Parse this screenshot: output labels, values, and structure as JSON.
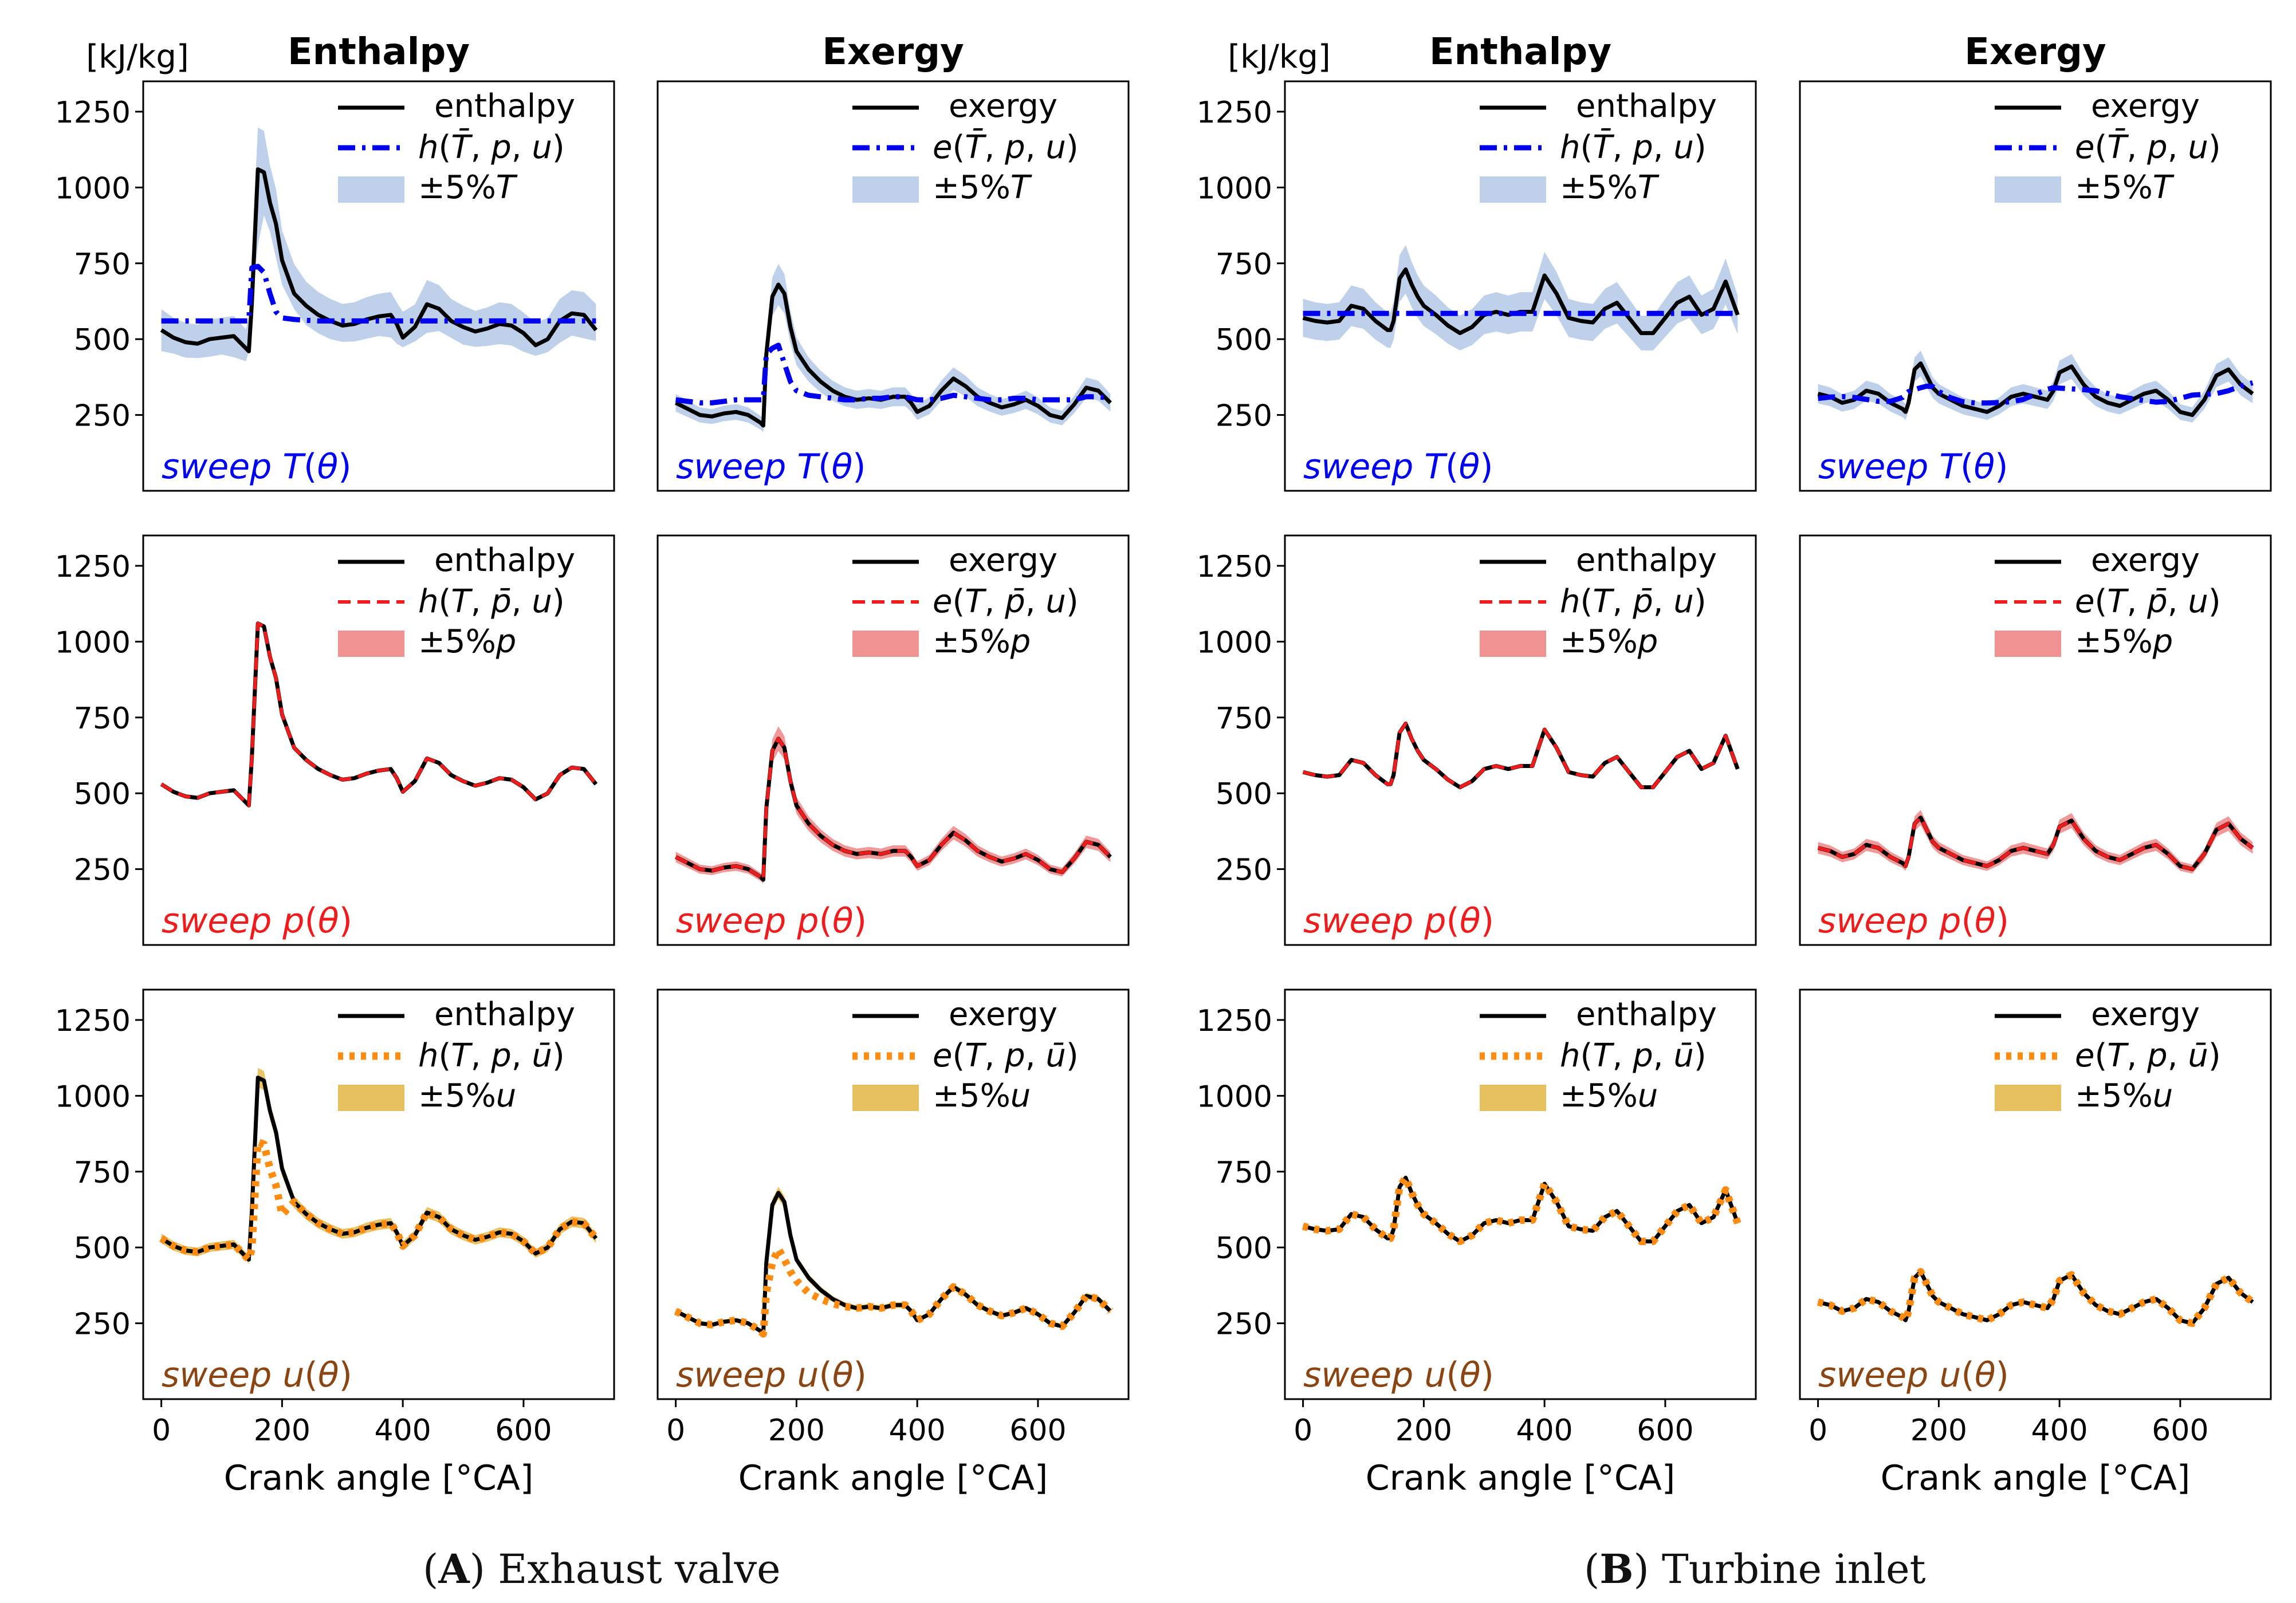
{
  "figure": {
    "panel_captions": [
      {
        "letter": "A",
        "text": " Exhaust valve"
      },
      {
        "letter": "B",
        "text": " Turbine inlet"
      }
    ]
  },
  "colors": {
    "T": "#0000ee",
    "T_band": "#b4c9e6",
    "p": "#ee1c1c",
    "p_band": "#ee7f7f",
    "u": "#ff8c10",
    "u_band": "#e3b542",
    "u_label": "#8b4513",
    "actual": "#000000"
  },
  "chart_data": {
    "type": "line",
    "column_titles": [
      "Enthalpy",
      "Exergy",
      "Enthalpy",
      "Exergy"
    ],
    "unit_label": "[kJ/kg]",
    "xlabel": "Crank angle [°CA]",
    "xlim": [
      -30,
      750
    ],
    "ylim": [
      0,
      1350
    ],
    "xticks": [
      0,
      200,
      400,
      600
    ],
    "yticks": [
      250,
      500,
      750,
      1000,
      1250
    ],
    "grid": false,
    "legend_position": "top-right",
    "rows": [
      {
        "sweep": "T",
        "label": "sweep T(θ)",
        "band_label": "±5%T",
        "h_ref": "h(T̄, p, u)",
        "e_ref": "e(T̄, p, u)",
        "ref_style": "dashdot"
      },
      {
        "sweep": "p",
        "label": "sweep p(θ)",
        "band_label": "±5%p",
        "h_ref": "h(T, p̄, u)",
        "e_ref": "e(T, p̄, u)",
        "ref_style": "dashed"
      },
      {
        "sweep": "u",
        "label": "sweep u(θ)",
        "band_label": "±5%u",
        "h_ref": "h(T, p, ū)",
        "e_ref": "e(T, p, ū)",
        "ref_style": "dotted"
      }
    ],
    "x": [
      0,
      20,
      40,
      60,
      80,
      100,
      120,
      140,
      145,
      150,
      160,
      170,
      180,
      190,
      200,
      220,
      240,
      260,
      280,
      300,
      320,
      340,
      360,
      380,
      390,
      400,
      420,
      440,
      460,
      480,
      500,
      520,
      540,
      560,
      580,
      600,
      620,
      640,
      660,
      680,
      700,
      720
    ],
    "series": {
      "A_enthalpy": [
        530,
        505,
        490,
        485,
        500,
        505,
        510,
        470,
        460,
        620,
        1060,
        1050,
        950,
        880,
        760,
        650,
        610,
        580,
        560,
        545,
        550,
        565,
        575,
        580,
        550,
        505,
        540,
        615,
        600,
        560,
        540,
        525,
        535,
        550,
        545,
        520,
        480,
        500,
        560,
        585,
        580,
        530
      ],
      "A_enthalpy_Tbar": [
        560,
        560,
        560,
        560,
        560,
        560,
        560,
        560,
        560,
        735,
        740,
        720,
        650,
        590,
        570,
        565,
        562,
        560,
        560,
        560,
        560,
        560,
        560,
        560,
        560,
        560,
        560,
        560,
        560,
        560,
        560,
        560,
        560,
        560,
        560,
        560,
        560,
        560,
        560,
        560,
        560,
        560
      ],
      "A_exergy": [
        290,
        270,
        250,
        245,
        255,
        260,
        250,
        225,
        215,
        450,
        640,
        680,
        650,
        540,
        460,
        400,
        360,
        330,
        310,
        300,
        305,
        300,
        310,
        310,
        290,
        260,
        280,
        330,
        370,
        345,
        310,
        290,
        275,
        285,
        300,
        280,
        250,
        240,
        285,
        340,
        330,
        290
      ],
      "A_exergy_Tbar": [
        300,
        295,
        290,
        290,
        295,
        300,
        300,
        300,
        300,
        450,
        470,
        480,
        420,
        360,
        330,
        315,
        310,
        305,
        300,
        300,
        305,
        305,
        310,
        310,
        305,
        300,
        300,
        305,
        315,
        310,
        305,
        300,
        300,
        305,
        305,
        300,
        300,
        300,
        300,
        310,
        310,
        305
      ],
      "A_exergy_ubar": [
        290,
        270,
        250,
        245,
        255,
        260,
        250,
        225,
        215,
        350,
        450,
        495,
        460,
        420,
        390,
        350,
        330,
        315,
        305,
        300,
        305,
        300,
        310,
        310,
        290,
        260,
        280,
        330,
        370,
        345,
        310,
        290,
        275,
        285,
        300,
        280,
        250,
        240,
        285,
        340,
        330,
        290
      ],
      "B_enthalpy": [
        570,
        560,
        555,
        560,
        610,
        600,
        560,
        530,
        530,
        560,
        700,
        730,
        680,
        640,
        610,
        580,
        545,
        520,
        540,
        580,
        590,
        580,
        590,
        590,
        650,
        710,
        650,
        570,
        560,
        555,
        600,
        620,
        570,
        520,
        520,
        570,
        620,
        640,
        580,
        600,
        690,
        580
      ],
      "B_exergy": [
        320,
        310,
        290,
        300,
        330,
        320,
        290,
        270,
        260,
        290,
        400,
        420,
        380,
        340,
        320,
        300,
        280,
        270,
        260,
        280,
        310,
        320,
        310,
        300,
        330,
        390,
        410,
        350,
        310,
        290,
        280,
        300,
        320,
        330,
        300,
        260,
        250,
        300,
        380,
        400,
        350,
        320
      ]
    }
  }
}
